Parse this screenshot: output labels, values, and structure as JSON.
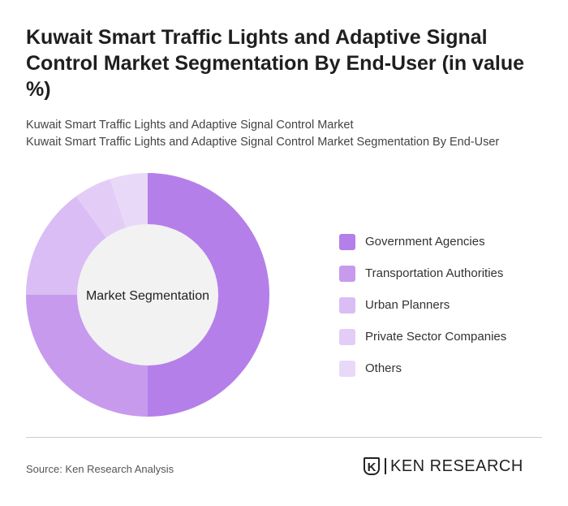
{
  "title": "Kuwait Smart Traffic Lights and Adaptive Signal Control Market Segmentation By End-User (in value %)",
  "subtitle1": "Kuwait Smart Traffic Lights and Adaptive Signal Control Market",
  "subtitle2": "Kuwait Smart Traffic Lights and Adaptive Signal Control Market Segmentation By End-User",
  "source": "Source: Ken Research Analysis",
  "logo_text": "KEN RESEARCH",
  "chart_data": {
    "type": "pie",
    "donut": true,
    "center_label": "Market Segmentation",
    "legend_position": "right",
    "categories": [
      "Government Agencies",
      "Transportation Authorities",
      "Urban Planners",
      "Private Sector Companies",
      "Others"
    ],
    "values": [
      50,
      25,
      15,
      5,
      5
    ],
    "colors": [
      "#b57fe9",
      "#c79aee",
      "#d9bdf4",
      "#e3cdf7",
      "#e9d9f9"
    ]
  }
}
